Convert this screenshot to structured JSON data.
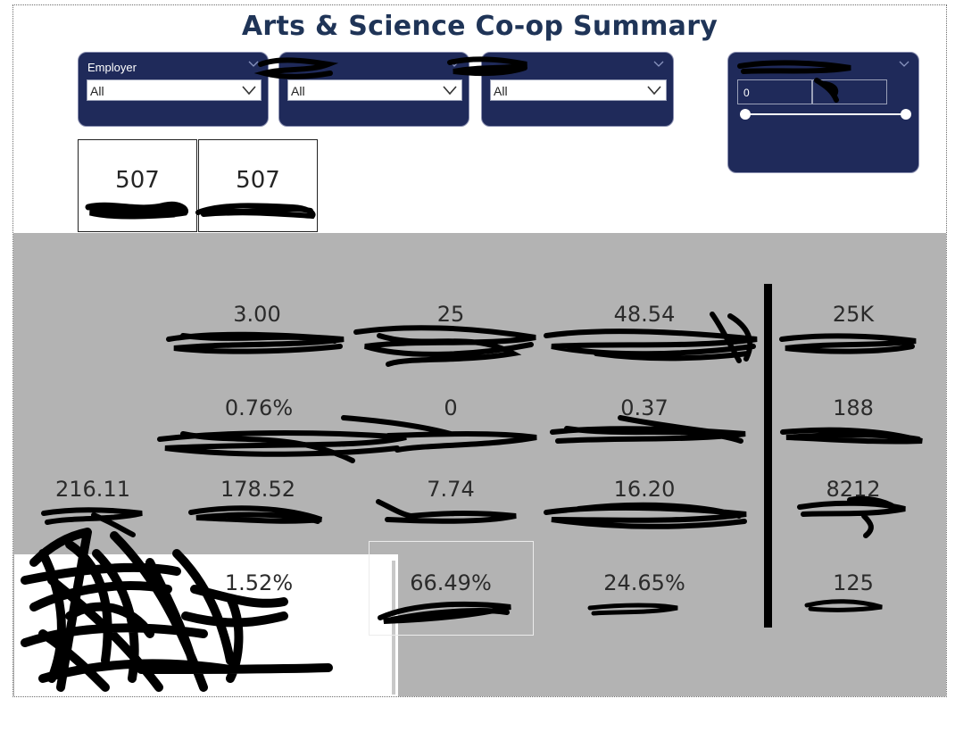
{
  "report": {
    "title": "Arts & Science Co-op Summary"
  },
  "slicers": [
    {
      "label": "Employer",
      "value": "All"
    },
    {
      "label": "",
      "value": "All"
    },
    {
      "label": "",
      "value": "All"
    }
  ],
  "range_slicer": {
    "label": "",
    "min_value": "0",
    "max_value": ""
  },
  "cards": [
    {
      "value": "507"
    },
    {
      "value": "507"
    }
  ],
  "kpis": {
    "row1": [
      "3.00",
      "25",
      "48.54",
      "25K"
    ],
    "row2": [
      "0.76%",
      "0",
      "0.37",
      "188"
    ],
    "row3": [
      "216.11",
      "178.52",
      "7.74",
      "16.20",
      "8212"
    ],
    "row4": [
      "1.52%",
      "66.49%",
      "24.65%",
      "125"
    ]
  }
}
